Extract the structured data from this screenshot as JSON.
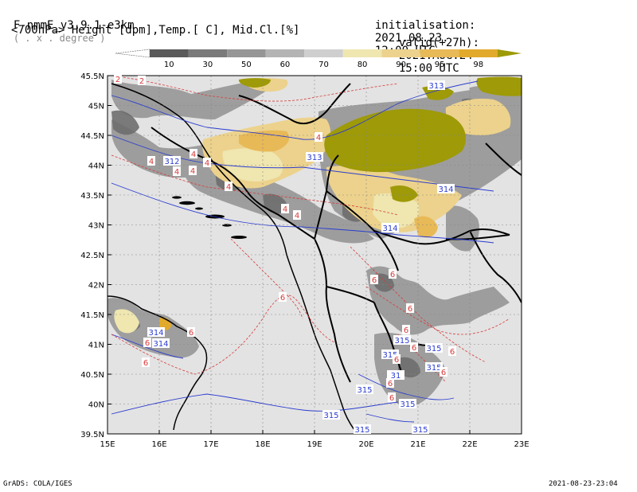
{
  "header": {
    "model_title": "F-nmmE_v3.9.1-e3km",
    "model_unit": "( . x . degree )",
    "field_description": "<700hPa> Height [dpm],Temp.[ C], Mid.Cl.[%]",
    "init_label": "initialisation:",
    "init_date": "2021.08.23.",
    "init_time": "12:00 UTC",
    "valid_label": "valid(+27h):",
    "valid_date": "2021.AUG.24",
    "valid_time": "15:00 UTC"
  },
  "legend": {
    "labels": [
      "10",
      "30",
      "50",
      "60",
      "70",
      "80",
      "90",
      "95",
      "98"
    ],
    "colors": [
      "#5a5a5a",
      "#7a7a7a",
      "#969696",
      "#b4b4b4",
      "#cfcfcf",
      "#efe6b0",
      "#ecd28c",
      "#e8b957",
      "#e2aa2c",
      "#9e9a08"
    ]
  },
  "axes": {
    "lat_labels": [
      "45.5N",
      "45N",
      "44.5N",
      "44N",
      "43.5N",
      "43N",
      "42.5N",
      "42N",
      "41.5N",
      "41N",
      "40.5N",
      "40N",
      "39.5N"
    ],
    "lon_labels": [
      "15E",
      "16E",
      "17E",
      "18E",
      "19E",
      "20E",
      "21E",
      "22E",
      "23E"
    ]
  },
  "contours": {
    "height_labels": [
      "313",
      "312",
      "313",
      "314",
      "314",
      "314",
      "314",
      "315",
      "315",
      "315",
      "315",
      "315",
      "315",
      "315",
      "31",
      "315",
      "315"
    ],
    "temp_labels": [
      "2",
      "2",
      "4",
      "4",
      "4",
      "4",
      "4",
      "4",
      "4",
      "4",
      "4",
      "6",
      "6",
      "6",
      "6",
      "6",
      "6",
      "6",
      "6",
      "6",
      "6",
      "6",
      "6",
      "6",
      "6"
    ]
  },
  "footer": {
    "left": "GrADS: COLA/IGES",
    "right": "2021-08-23-23:04"
  },
  "colors": {
    "background": "#e3e3e3",
    "height_contour": "#2a3ccf",
    "temp_contour": "#d83a3a",
    "border": "#000000"
  }
}
